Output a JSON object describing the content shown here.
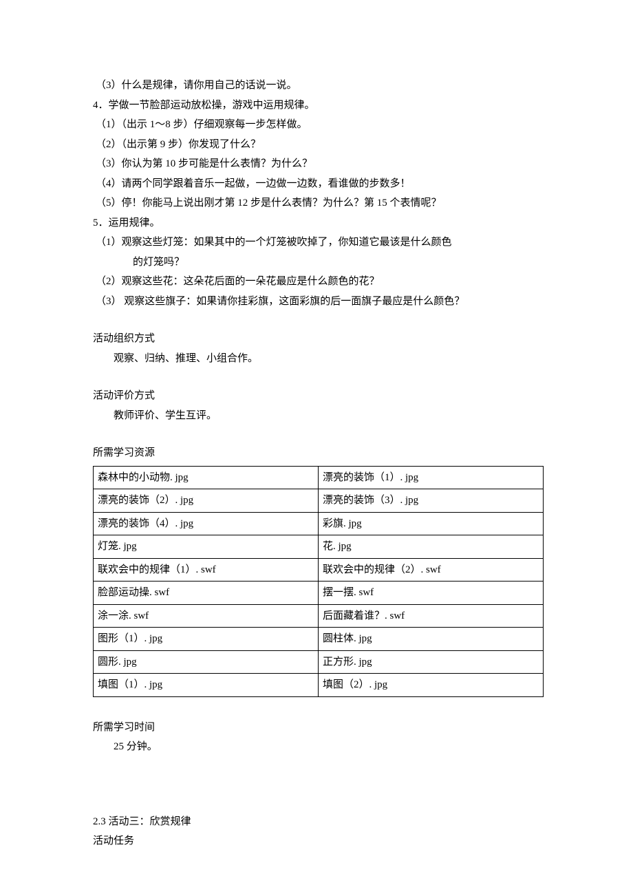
{
  "lines": {
    "l1": "（3）什么是规律，请你用自己的话说一说。",
    "l2": "4．学做一节脸部运动放松操，游戏中运用规律。",
    "l3": "（1）（出示 1～8 步）仔细观察每一步怎样做。",
    "l4": "（2）（出示第 9 步）你发现了什么？",
    "l5": "（3）你认为第 10 步可能是什么表情？为什么？",
    "l6": "（4）请两个同学跟着音乐一起做，一边做一边数，看谁做的步数多！",
    "l7": "（5）停！你能马上说出刚才第 12 步是什么表情？为什么？第 15 个表情呢？",
    "l8": "5．运用规律。",
    "l9a": "（1）观察这些灯笼：如果其中的一个灯笼被吹掉了，你知道它最该是什么颜色",
    "l9b": "的灯笼吗？",
    "l10": "（2）观察这些花：这朵花后面的一朵花最应是什么颜色的花？",
    "l11": "（3） 观察这些旗子：如果请你挂彩旗，这面彩旗的后一面旗子最应是什么颜色？"
  },
  "sections": {
    "org_title": "活动组织方式",
    "org_body": "观察、归纳、推理、小组合作。",
    "eval_title": "活动评价方式",
    "eval_body": "教师评价、学生互评。",
    "res_title": "所需学习资源",
    "time_title": "所需学习时间",
    "time_body": "25 分钟。",
    "act3_title": "2.3 活动三：欣赏规律",
    "act3_task": "活动任务"
  },
  "resources": {
    "rows": [
      [
        "森林中的小动物. jpg",
        "漂亮的装饰（1）. jpg"
      ],
      [
        "漂亮的装饰（2）. jpg",
        "漂亮的装饰（3）. jpg"
      ],
      [
        "漂亮的装饰（4）. jpg",
        "彩旗. jpg"
      ],
      [
        "灯笼. jpg",
        "花. jpg"
      ],
      [
        "联欢会中的规律（1）. swf",
        "联欢会中的规律（2）. swf"
      ],
      [
        "脸部运动操. swf",
        "摆一摆. swf"
      ],
      [
        "涂一涂. swf",
        "后面藏着谁？. swf"
      ],
      [
        "图形（1）. jpg",
        "圆柱体. jpg"
      ],
      [
        "圆形. jpg",
        "正方形. jpg"
      ],
      [
        "填图（1）. jpg",
        "填图（2）. jpg"
      ]
    ]
  }
}
